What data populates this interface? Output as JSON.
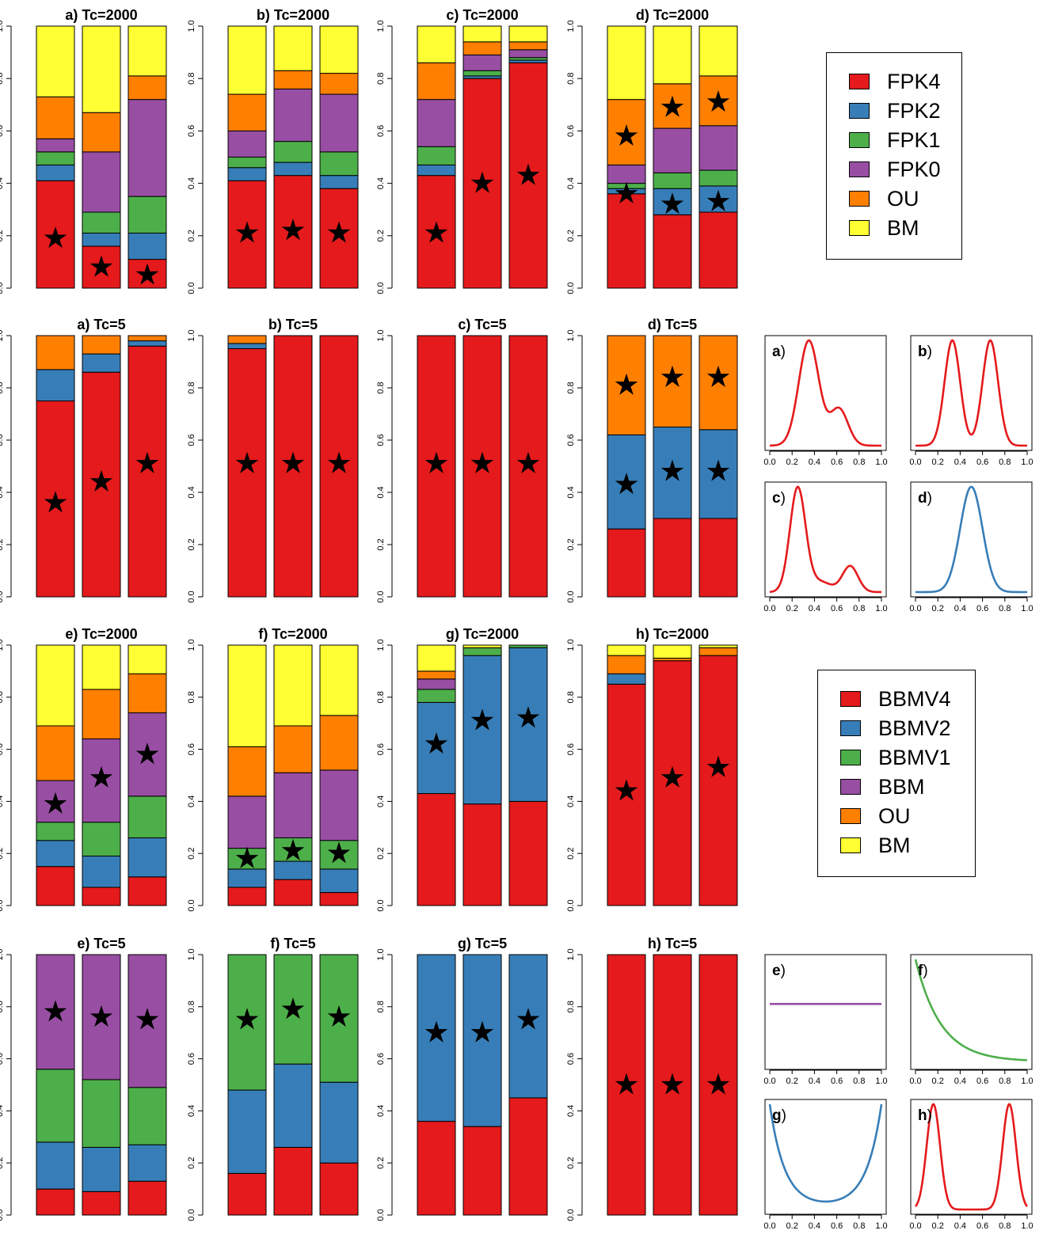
{
  "colors": {
    "red": "#e41a1c",
    "blue": "#377eb8",
    "green": "#4daf4a",
    "purple": "#984ea3",
    "orange": "#ff7f00",
    "yellow": "#ffff33"
  },
  "legend_top": {
    "items": [
      {
        "label": "FPK4",
        "color": "#e41a1c"
      },
      {
        "label": "FPK2",
        "color": "#377eb8"
      },
      {
        "label": "FPK1",
        "color": "#4daf4a"
      },
      {
        "label": "FPK0",
        "color": "#984ea3"
      },
      {
        "label": "OU",
        "color": "#ff7f00"
      },
      {
        "label": "BM",
        "color": "#ffff33"
      }
    ]
  },
  "legend_bottom": {
    "items": [
      {
        "label": "BBMV4",
        "color": "#e41a1c"
      },
      {
        "label": "BBMV2",
        "color": "#377eb8"
      },
      {
        "label": "BBMV1",
        "color": "#4daf4a"
      },
      {
        "label": "BBM",
        "color": "#984ea3"
      },
      {
        "label": "OU",
        "color": "#ff7f00"
      },
      {
        "label": "BM",
        "color": "#ffff33"
      }
    ]
  },
  "chart_data": [
    {
      "type": "bar",
      "stacked": true,
      "title": "a) Tc=2000",
      "ylim": [
        0,
        1
      ],
      "yticks": [
        "0.0",
        "0.2",
        "0.4",
        "0.6",
        "0.8",
        "1.0"
      ],
      "series_colors": [
        "#e41a1c",
        "#377eb8",
        "#4daf4a",
        "#984ea3",
        "#ff7f00",
        "#ffff33"
      ],
      "bars": [
        [
          0.41,
          0.06,
          0.05,
          0.05,
          0.16,
          0.27
        ],
        [
          0.16,
          0.05,
          0.08,
          0.23,
          0.15,
          0.33
        ],
        [
          0.11,
          0.1,
          0.14,
          0.37,
          0.09,
          0.19
        ]
      ],
      "stars": [
        0.19,
        0.08,
        0.05
      ]
    },
    {
      "type": "bar",
      "stacked": true,
      "title": "b) Tc=2000",
      "ylim": [
        0,
        1
      ],
      "yticks": [
        "0.0",
        "0.2",
        "0.4",
        "0.6",
        "0.8",
        "1.0"
      ],
      "series_colors": [
        "#e41a1c",
        "#377eb8",
        "#4daf4a",
        "#984ea3",
        "#ff7f00",
        "#ffff33"
      ],
      "bars": [
        [
          0.41,
          0.05,
          0.04,
          0.1,
          0.14,
          0.26
        ],
        [
          0.43,
          0.05,
          0.08,
          0.2,
          0.07,
          0.17
        ],
        [
          0.38,
          0.05,
          0.09,
          0.22,
          0.08,
          0.18
        ]
      ],
      "stars": [
        0.21,
        0.22,
        0.21
      ]
    },
    {
      "type": "bar",
      "stacked": true,
      "title": "c) Tc=2000",
      "ylim": [
        0,
        1
      ],
      "yticks": [
        "0.0",
        "0.2",
        "0.4",
        "0.6",
        "0.8",
        "1.0"
      ],
      "series_colors": [
        "#e41a1c",
        "#377eb8",
        "#4daf4a",
        "#984ea3",
        "#ff7f00",
        "#ffff33"
      ],
      "bars": [
        [
          0.43,
          0.04,
          0.07,
          0.18,
          0.14,
          0.14
        ],
        [
          0.8,
          0.01,
          0.02,
          0.06,
          0.05,
          0.06
        ],
        [
          0.86,
          0.01,
          0.01,
          0.03,
          0.03,
          0.06
        ]
      ],
      "stars": [
        0.21,
        0.4,
        0.43
      ]
    },
    {
      "type": "bar",
      "stacked": true,
      "title": "d) Tc=2000",
      "ylim": [
        0,
        1
      ],
      "yticks": [
        "0.0",
        "0.2",
        "0.4",
        "0.6",
        "0.8",
        "1.0"
      ],
      "series_colors": [
        "#e41a1c",
        "#377eb8",
        "#4daf4a",
        "#984ea3",
        "#ff7f00",
        "#ffff33"
      ],
      "bars": [
        [
          0.36,
          0.02,
          0.02,
          0.07,
          0.25,
          0.28
        ],
        [
          0.28,
          0.1,
          0.06,
          0.17,
          0.17,
          0.22
        ],
        [
          0.29,
          0.1,
          0.06,
          0.17,
          0.19,
          0.19
        ]
      ],
      "stars": [
        0.36,
        0.58,
        0.32,
        0.69,
        0.33,
        0.71
      ]
    },
    {
      "type": "bar",
      "stacked": true,
      "title": "a) Tc=5",
      "ylim": [
        0,
        1
      ],
      "yticks": [
        "0.0",
        "0.2",
        "0.4",
        "0.6",
        "0.8",
        "1.0"
      ],
      "series_colors": [
        "#e41a1c",
        "#377eb8",
        "#4daf4a",
        "#984ea3",
        "#ff7f00",
        "#ffff33"
      ],
      "bars": [
        [
          0.75,
          0.12,
          0,
          0,
          0.13,
          0
        ],
        [
          0.86,
          0.07,
          0,
          0,
          0.07,
          0
        ],
        [
          0.96,
          0.02,
          0,
          0,
          0.02,
          0
        ]
      ],
      "stars": [
        0.36,
        0.44,
        0.51
      ]
    },
    {
      "type": "bar",
      "stacked": true,
      "title": "b) Tc=5",
      "ylim": [
        0,
        1
      ],
      "yticks": [
        "0.0",
        "0.2",
        "0.4",
        "0.6",
        "0.8",
        "1.0"
      ],
      "series_colors": [
        "#e41a1c",
        "#377eb8",
        "#4daf4a",
        "#984ea3",
        "#ff7f00",
        "#ffff33"
      ],
      "bars": [
        [
          0.95,
          0.02,
          0,
          0,
          0.03,
          0
        ],
        [
          1.0,
          0,
          0,
          0,
          0,
          0
        ],
        [
          1.0,
          0,
          0,
          0,
          0,
          0
        ]
      ],
      "stars": [
        0.51,
        0.51,
        0.51
      ]
    },
    {
      "type": "bar",
      "stacked": true,
      "title": "c) Tc=5",
      "ylim": [
        0,
        1
      ],
      "yticks": [
        "0.0",
        "0.2",
        "0.4",
        "0.6",
        "0.8",
        "1.0"
      ],
      "series_colors": [
        "#e41a1c",
        "#377eb8",
        "#4daf4a",
        "#984ea3",
        "#ff7f00",
        "#ffff33"
      ],
      "bars": [
        [
          1.0,
          0,
          0,
          0,
          0,
          0
        ],
        [
          1.0,
          0,
          0,
          0,
          0,
          0
        ],
        [
          1.0,
          0,
          0,
          0,
          0,
          0
        ]
      ],
      "stars": [
        0.51,
        0.51,
        0.51
      ]
    },
    {
      "type": "bar",
      "stacked": true,
      "title": "d) Tc=5",
      "ylim": [
        0,
        1
      ],
      "yticks": [
        "0.0",
        "0.2",
        "0.4",
        "0.6",
        "0.8",
        "1.0"
      ],
      "series_colors": [
        "#e41a1c",
        "#377eb8",
        "#4daf4a",
        "#984ea3",
        "#ff7f00",
        "#ffff33"
      ],
      "bars": [
        [
          0.26,
          0.36,
          0,
          0,
          0.38,
          0
        ],
        [
          0.3,
          0.35,
          0,
          0,
          0.35,
          0
        ],
        [
          0.3,
          0.34,
          0,
          0,
          0.36,
          0
        ]
      ],
      "stars": [
        0.43,
        0.81,
        0.48,
        0.84,
        0.48,
        0.84
      ]
    },
    {
      "type": "bar",
      "stacked": true,
      "title": "e) Tc=2000",
      "ylim": [
        0,
        1
      ],
      "yticks": [
        "0.0",
        "0.2",
        "0.4",
        "0.6",
        "0.8",
        "1.0"
      ],
      "series_colors": [
        "#e41a1c",
        "#377eb8",
        "#4daf4a",
        "#984ea3",
        "#ff7f00",
        "#ffff33"
      ],
      "bars": [
        [
          0.15,
          0.1,
          0.07,
          0.16,
          0.21,
          0.31
        ],
        [
          0.07,
          0.12,
          0.13,
          0.32,
          0.19,
          0.17
        ],
        [
          0.11,
          0.15,
          0.16,
          0.32,
          0.15,
          0.11
        ]
      ],
      "stars": [
        0.39,
        0.49,
        0.58
      ]
    },
    {
      "type": "bar",
      "stacked": true,
      "title": "f) Tc=2000",
      "ylim": [
        0,
        1
      ],
      "yticks": [
        "0.0",
        "0.2",
        "0.4",
        "0.6",
        "0.8",
        "1.0"
      ],
      "series_colors": [
        "#e41a1c",
        "#377eb8",
        "#4daf4a",
        "#984ea3",
        "#ff7f00",
        "#ffff33"
      ],
      "bars": [
        [
          0.07,
          0.07,
          0.08,
          0.2,
          0.19,
          0.39
        ],
        [
          0.1,
          0.07,
          0.09,
          0.25,
          0.18,
          0.31
        ],
        [
          0.05,
          0.09,
          0.11,
          0.27,
          0.21,
          0.27
        ]
      ],
      "stars": [
        0.18,
        0.21,
        0.2
      ]
    },
    {
      "type": "bar",
      "stacked": true,
      "title": "g) Tc=2000",
      "ylim": [
        0,
        1
      ],
      "yticks": [
        "0.0",
        "0.2",
        "0.4",
        "0.6",
        "0.8",
        "1.0"
      ],
      "series_colors": [
        "#e41a1c",
        "#377eb8",
        "#4daf4a",
        "#984ea3",
        "#ff7f00",
        "#ffff33"
      ],
      "bars": [
        [
          0.43,
          0.35,
          0.05,
          0.04,
          0.03,
          0.1
        ],
        [
          0.39,
          0.57,
          0.03,
          0,
          0,
          0.01
        ],
        [
          0.4,
          0.59,
          0.01,
          0,
          0,
          0
        ]
      ],
      "stars": [
        0.62,
        0.71,
        0.72
      ]
    },
    {
      "type": "bar",
      "stacked": true,
      "title": "h) Tc=2000",
      "ylim": [
        0,
        1
      ],
      "yticks": [
        "0.0",
        "0.2",
        "0.4",
        "0.6",
        "0.8",
        "1.0"
      ],
      "series_colors": [
        "#e41a1c",
        "#377eb8",
        "#4daf4a",
        "#984ea3",
        "#ff7f00",
        "#ffff33"
      ],
      "bars": [
        [
          0.85,
          0.04,
          0,
          0,
          0.07,
          0.04
        ],
        [
          0.94,
          0,
          0,
          0,
          0.01,
          0.05
        ],
        [
          0.96,
          0,
          0,
          0,
          0.03,
          0.01
        ]
      ],
      "stars": [
        0.44,
        0.49,
        0.53
      ]
    },
    {
      "type": "bar",
      "stacked": true,
      "title": "e) Tc=5",
      "ylim": [
        0,
        1
      ],
      "yticks": [
        "0.0",
        "0.2",
        "0.4",
        "0.6",
        "0.8",
        "1.0"
      ],
      "series_colors": [
        "#e41a1c",
        "#377eb8",
        "#4daf4a",
        "#984ea3",
        "#ff7f00",
        "#ffff33"
      ],
      "bars": [
        [
          0.1,
          0.18,
          0.28,
          0.44,
          0,
          0
        ],
        [
          0.09,
          0.17,
          0.26,
          0.48,
          0,
          0
        ],
        [
          0.13,
          0.14,
          0.22,
          0.51,
          0,
          0
        ]
      ],
      "stars": [
        0.78,
        0.76,
        0.75
      ]
    },
    {
      "type": "bar",
      "stacked": true,
      "title": "f) Tc=5",
      "ylim": [
        0,
        1
      ],
      "yticks": [
        "0.0",
        "0.2",
        "0.4",
        "0.6",
        "0.8",
        "1.0"
      ],
      "series_colors": [
        "#e41a1c",
        "#377eb8",
        "#4daf4a",
        "#984ea3",
        "#ff7f00",
        "#ffff33"
      ],
      "bars": [
        [
          0.16,
          0.32,
          0.52,
          0,
          0,
          0
        ],
        [
          0.26,
          0.32,
          0.42,
          0,
          0,
          0
        ],
        [
          0.2,
          0.31,
          0.49,
          0,
          0,
          0
        ]
      ],
      "stars": [
        0.75,
        0.79,
        0.76
      ]
    },
    {
      "type": "bar",
      "stacked": true,
      "title": "g) Tc=5",
      "ylim": [
        0,
        1
      ],
      "yticks": [
        "0.0",
        "0.2",
        "0.4",
        "0.6",
        "0.8",
        "1.0"
      ],
      "series_colors": [
        "#e41a1c",
        "#377eb8",
        "#4daf4a",
        "#984ea3",
        "#ff7f00",
        "#ffff33"
      ],
      "bars": [
        [
          0.36,
          0.64,
          0,
          0,
          0,
          0
        ],
        [
          0.34,
          0.66,
          0,
          0,
          0,
          0
        ],
        [
          0.45,
          0.55,
          0,
          0,
          0,
          0
        ]
      ],
      "stars": [
        0.7,
        0.7,
        0.75
      ]
    },
    {
      "type": "bar",
      "stacked": true,
      "title": "h) Tc=5",
      "ylim": [
        0,
        1
      ],
      "yticks": [
        "0.0",
        "0.2",
        "0.4",
        "0.6",
        "0.8",
        "1.0"
      ],
      "series_colors": [
        "#e41a1c",
        "#377eb8",
        "#4daf4a",
        "#984ea3",
        "#ff7f00",
        "#ffff33"
      ],
      "bars": [
        [
          1.0,
          0,
          0,
          0,
          0,
          0
        ],
        [
          1.0,
          0,
          0,
          0,
          0,
          0
        ],
        [
          1.0,
          0,
          0,
          0,
          0,
          0
        ]
      ],
      "stars": [
        0.5,
        0.5,
        0.5
      ]
    },
    {
      "type": "line",
      "label": "a",
      "color": "#e41a1c",
      "xlim": [
        0,
        1
      ],
      "xticks": [
        "0.0",
        "0.2",
        "0.4",
        "0.6",
        "0.8",
        "1.0"
      ],
      "components": [
        [
          0.35,
          0.09,
          1.0
        ],
        [
          0.62,
          0.08,
          0.35
        ]
      ]
    },
    {
      "type": "line",
      "label": "b",
      "color": "#e41a1c",
      "xlim": [
        0,
        1
      ],
      "xticks": [
        "0.0",
        "0.2",
        "0.4",
        "0.6",
        "0.8",
        "1.0"
      ],
      "components": [
        [
          0.33,
          0.07,
          1.0
        ],
        [
          0.67,
          0.07,
          1.0
        ]
      ]
    },
    {
      "type": "line",
      "label": "c",
      "color": "#e41a1c",
      "xlim": [
        0,
        1
      ],
      "xticks": [
        "0.0",
        "0.2",
        "0.4",
        "0.6",
        "0.8",
        "1.0"
      ],
      "components": [
        [
          0.25,
          0.07,
          1.0
        ],
        [
          0.72,
          0.07,
          0.25
        ],
        [
          0.45,
          0.1,
          0.1
        ]
      ]
    },
    {
      "type": "line",
      "label": "d",
      "color": "#377eb8",
      "xlim": [
        0,
        1
      ],
      "xticks": [
        "0.0",
        "0.2",
        "0.4",
        "0.6",
        "0.8",
        "1.0"
      ],
      "components": [
        [
          0.5,
          0.1,
          1.0
        ]
      ]
    },
    {
      "type": "line",
      "label": "e",
      "color": "#984ea3",
      "xlim": [
        0,
        1
      ],
      "xticks": [
        "0.0",
        "0.2",
        "0.4",
        "0.6",
        "0.8",
        "1.0"
      ],
      "shape": "flat"
    },
    {
      "type": "line",
      "label": "f",
      "color": "#4daf4a",
      "xlim": [
        0,
        1
      ],
      "xticks": [
        "0.0",
        "0.2",
        "0.4",
        "0.6",
        "0.8",
        "1.0"
      ],
      "shape": "decay"
    },
    {
      "type": "line",
      "label": "g",
      "color": "#377eb8",
      "xlim": [
        0,
        1
      ],
      "xticks": [
        "0.0",
        "0.2",
        "0.4",
        "0.6",
        "0.8",
        "1.0"
      ],
      "shape": "ushape"
    },
    {
      "type": "line",
      "label": "h",
      "color": "#e41a1c",
      "xlim": [
        0,
        1
      ],
      "xticks": [
        "0.0",
        "0.2",
        "0.4",
        "0.6",
        "0.8",
        "1.0"
      ],
      "components": [
        [
          0.16,
          0.06,
          1.0
        ],
        [
          0.84,
          0.06,
          1.0
        ]
      ]
    }
  ]
}
